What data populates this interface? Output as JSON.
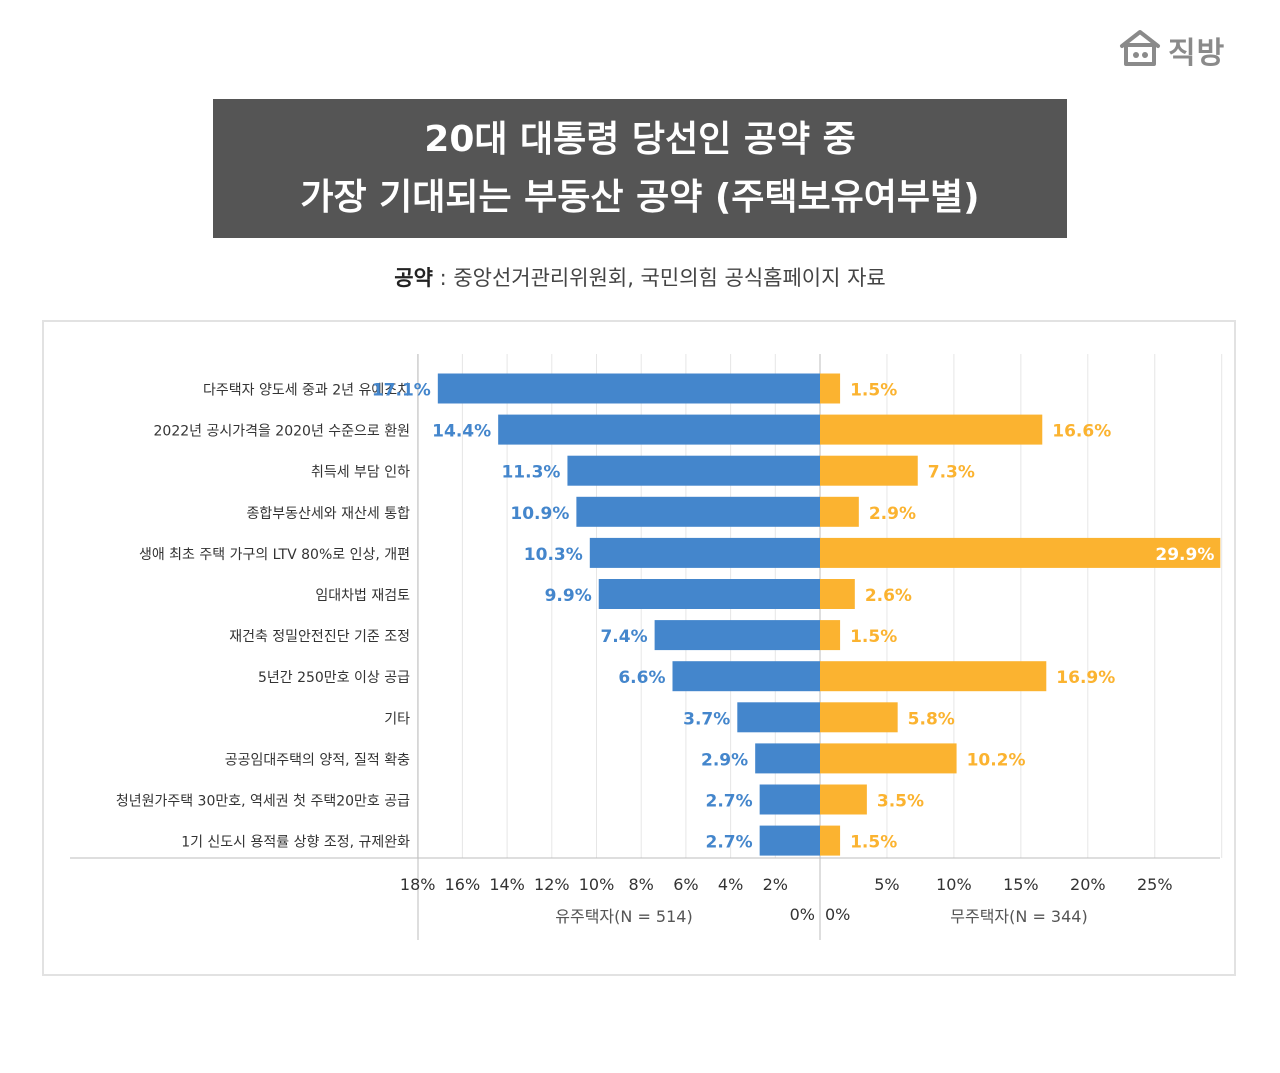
{
  "logo": {
    "text": "직방",
    "icon": "house-icon"
  },
  "title": {
    "line1": "20대 대통령 당선인 공약 중",
    "line2": "가장 기대되는 부동산 공약 (주택보유여부별)"
  },
  "subtitle": {
    "label": "공약",
    "separator": " : ",
    "text": "중앙선거관리위원회, 국민의힘 공식홈페이지 자료"
  },
  "chart_data": {
    "type": "bar",
    "orientation": "horizontal-diverging",
    "categories": [
      "다주택자 양도세 중과 2년 유예조치",
      "2022년 공시가격을 2020년 수준으로 환원",
      "취득세 부담 인하",
      "종합부동산세와 재산세 통합",
      "생애 최초 주택 가구의 LTV 80%로 인상, 개편",
      "임대차법 재검토",
      "재건축 정밀안전진단 기준 조정",
      "5년간 250만호 이상 공급",
      "기타",
      "공공임대주택의 양적, 질적 확충",
      "청년원가주택 30만호, 역세권 첫 주택20만호 공급",
      "1기 신도시 용적률 상향 조정, 규제완화"
    ],
    "series": [
      {
        "name": "유주택자(N = 514)",
        "color": "#4486cc",
        "values": [
          17.1,
          14.4,
          11.3,
          10.9,
          10.3,
          9.9,
          7.4,
          6.6,
          3.7,
          2.9,
          2.7,
          2.7
        ],
        "labels": [
          "17.1%",
          "14.4%",
          "11.3%",
          "10.9%",
          "10.3%",
          "9.9%",
          "7.4%",
          "6.6%",
          "3.7%",
          "2.9%",
          "2.7%",
          "2.7%"
        ],
        "ticks": [
          "18%",
          "16%",
          "14%",
          "12%",
          "10%",
          "8%",
          "6%",
          "4%",
          "2%",
          "0%"
        ],
        "tick_values": [
          18,
          16,
          14,
          12,
          10,
          8,
          6,
          4,
          2,
          0
        ],
        "xlim": [
          0,
          18
        ]
      },
      {
        "name": "무주택자(N = 344)",
        "color": "#fbb330",
        "values": [
          1.5,
          16.6,
          7.3,
          2.9,
          29.9,
          2.6,
          1.5,
          16.9,
          5.8,
          10.2,
          3.5,
          1.5
        ],
        "labels": [
          "1.5%",
          "16.6%",
          "7.3%",
          "2.9%",
          "29.9%",
          "2.6%",
          "1.5%",
          "16.9%",
          "5.8%",
          "10.2%",
          "3.5%",
          "1.5%"
        ],
        "ticks": [
          "0%",
          "5%",
          "10%",
          "15%",
          "20%",
          "25%"
        ],
        "tick_values": [
          0,
          5,
          10,
          15,
          20,
          25
        ],
        "xlim": [
          0,
          30
        ]
      }
    ],
    "grid": true
  }
}
